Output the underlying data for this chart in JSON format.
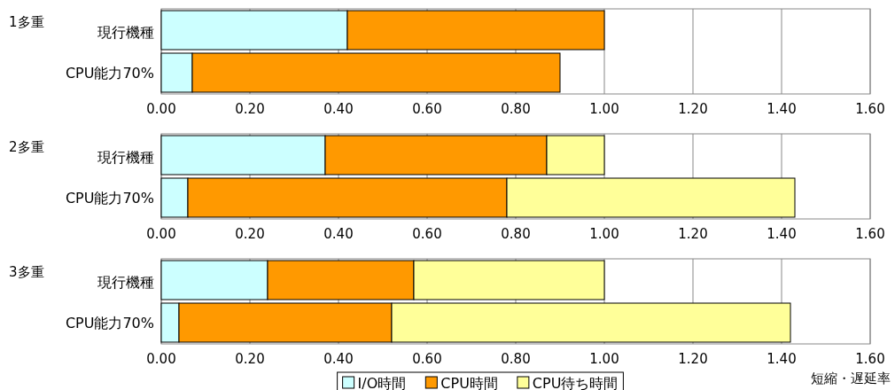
{
  "chart_data": [
    {
      "type": "bar",
      "orientation": "horizontal",
      "stacked": true,
      "title": "1多重",
      "categories": [
        "現行機種",
        "CPU能力70%"
      ],
      "grid": "x",
      "xlim": [
        0,
        1.6
      ],
      "xticks": [
        {
          "value": 0,
          "label": "0.00"
        },
        {
          "value": 0.2,
          "label": "0.20"
        },
        {
          "value": 0.4,
          "label": "0.40"
        },
        {
          "value": 0.6,
          "label": "0.60"
        },
        {
          "value": 0.8,
          "label": "0.80"
        },
        {
          "value": 1.0,
          "label": "1.00"
        },
        {
          "value": 1.2,
          "label": "1.20"
        },
        {
          "value": 1.4,
          "label": "1.40"
        },
        {
          "value": 1.6,
          "label": "1.60"
        }
      ],
      "series": [
        {
          "color": "#ccffff",
          "values": [
            0.42,
            0.07
          ]
        },
        {
          "color": "#ff9900",
          "values": [
            0.58,
            0.83
          ]
        }
      ]
    },
    {
      "type": "bar",
      "orientation": "horizontal",
      "stacked": true,
      "title": "2多重",
      "categories": [
        "現行機種",
        "CPU能力70%"
      ],
      "grid": "x",
      "xlim": [
        0,
        1.6
      ],
      "xticks": [
        {
          "value": 0,
          "label": "0.00"
        },
        {
          "value": 0.2,
          "label": "0.20"
        },
        {
          "value": 0.4,
          "label": "0.40"
        },
        {
          "value": 0.6,
          "label": "0.60"
        },
        {
          "value": 0.8,
          "label": "0.80"
        },
        {
          "value": 1.0,
          "label": "1.00"
        },
        {
          "value": 1.2,
          "label": "1.20"
        },
        {
          "value": 1.4,
          "label": "1.40"
        },
        {
          "value": 1.6,
          "label": "1.60"
        }
      ],
      "series": [
        {
          "color": "#ccffff",
          "values": [
            0.37,
            0.06
          ]
        },
        {
          "color": "#ff9900",
          "values": [
            0.5,
            0.72
          ]
        },
        {
          "color": "#ffff99",
          "values": [
            0.13,
            0.65
          ]
        }
      ]
    },
    {
      "type": "bar",
      "orientation": "horizontal",
      "stacked": true,
      "title": "3多重",
      "categories": [
        "現行機種",
        "CPU能力70%"
      ],
      "grid": "x",
      "xlabel": "短縮・遅延率",
      "legend": "bottom",
      "xlim": [
        0,
        1.6
      ],
      "xticks": [
        {
          "value": 0,
          "label": "0.00"
        },
        {
          "value": 0.2,
          "label": "0.20"
        },
        {
          "value": 0.4,
          "label": "0.40"
        },
        {
          "value": 0.6,
          "label": "0.60"
        },
        {
          "value": 0.8,
          "label": "0.80"
        },
        {
          "value": 1.0,
          "label": "1.00"
        },
        {
          "value": 1.2,
          "label": "1.20"
        },
        {
          "value": 1.4,
          "label": "1.40"
        },
        {
          "value": 1.6,
          "label": "1.60"
        }
      ],
      "series": [
        {
          "name": "I/O時間",
          "color": "#ccffff",
          "values": [
            0.24,
            0.04
          ]
        },
        {
          "name": "CPU時間",
          "color": "#ff9900",
          "values": [
            0.33,
            0.48
          ]
        },
        {
          "name": "CPU待ち時間",
          "color": "#ffff99",
          "values": [
            0.43,
            0.9
          ]
        }
      ]
    }
  ]
}
